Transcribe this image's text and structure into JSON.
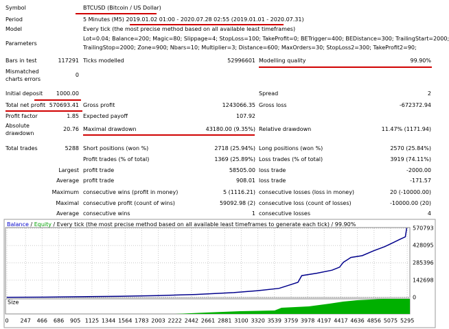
{
  "report": {
    "symbol": {
      "label": "Symbol",
      "value": "BTCUSD (Bitcoin / US Dollar)"
    },
    "period": {
      "label": "Period",
      "value": "5 Minutes (M5) 2019.01.02 01:00 - 2020.07.28 02:55 (2019.01.01 - 2020.07.31)"
    },
    "model": {
      "label": "Model",
      "value": "Every tick (the most precise method based on all available least timeframes)"
    },
    "parameters": {
      "label": "Parameters",
      "lines": [
        "Lot=0.04; Balance=200; Magic=80; Slippage=4; StopLoss=100; TakeProfit=0; BETrigger=400; BEDistance=300; TrailingStart=2000;",
        "TrailingStop=2000; Zone=900; Nbars=10; Multiplier=3; Distance=600; MaxOrders=30; StopLoss2=300; TakeProfit2=90;"
      ]
    },
    "stats": [
      {
        "c1": {
          "label": [
            "Bars in test"
          ],
          "value": "117291"
        },
        "c2": {
          "label": "Ticks modelled",
          "value": "52996601"
        },
        "c3": {
          "label": "Modelling quality",
          "value": "99.90%"
        }
      },
      {
        "c1": {
          "label": [
            "Mismatched",
            "charts errors"
          ],
          "value": "0"
        }
      },
      {
        "c1": {
          "label": [
            "Initial deposit"
          ],
          "value": "1000.00"
        },
        "c3": {
          "label": "Spread",
          "value": "2"
        }
      },
      {
        "c1": {
          "label": [
            "Total net profit"
          ],
          "value": "570693.41"
        },
        "c2": {
          "label": "Gross profit",
          "value": "1243066.35"
        },
        "c3": {
          "label": "Gross loss",
          "value": "-672372.94"
        }
      },
      {
        "c1": {
          "label": [
            "Profit factor"
          ],
          "value": "1.85"
        },
        "c2": {
          "label": "Expected payoff",
          "value": "107.92"
        }
      },
      {
        "c1": {
          "label": [
            "Absolute",
            "drawdown"
          ],
          "value": "20.76"
        },
        "c2": {
          "label": "Maximal drawdown",
          "value": "43180.00 (9.35%)"
        },
        "c3": {
          "label": "Relative drawdown",
          "value": "11.47% (1171.94)"
        }
      },
      {
        "c1": {
          "label": [
            "Total trades"
          ],
          "value": "5288"
        },
        "c2": {
          "label": "Short positions (won %)",
          "value": "2718 (25.94%)"
        },
        "c3": {
          "label": "Long positions (won %)",
          "value": "2570 (25.84%)"
        }
      },
      {
        "c2": {
          "label": "Profit trades (% of total)",
          "value": "1369 (25.89%)"
        },
        "c3": {
          "label": "Loss trades (% of total)",
          "value": "3919 (74.11%)"
        }
      },
      {
        "lead": "Largest",
        "c2": {
          "label": "profit trade",
          "value": "58505.00"
        },
        "c3": {
          "label": "loss trade",
          "value": "-2000.00"
        }
      },
      {
        "lead": "Average",
        "c2": {
          "label": "profit trade",
          "value": "908.01"
        },
        "c3": {
          "label": "loss trade",
          "value": "-171.57"
        }
      },
      {
        "lead": "Maximum",
        "c2": {
          "label": "consecutive wins (profit in money)",
          "value": "5 (1116.21)"
        },
        "c3": {
          "label": "consecutive losses (loss in money)",
          "value": "20 (-10000.00)"
        }
      },
      {
        "lead": "Maximal",
        "c2": {
          "label": "consecutive profit (count of wins)",
          "value": "59092.98 (2)"
        },
        "c3": {
          "label": "consecutive loss (count of losses)",
          "value": "-10000.00 (20)"
        }
      },
      {
        "lead": "Average",
        "c2": {
          "label": "consecutive wins",
          "value": "1"
        },
        "c3": {
          "label": "consecutive losses",
          "value": "4"
        }
      }
    ]
  },
  "graph": {
    "balance_label": "Balance",
    "separator": "/",
    "equity_label": "Equity",
    "description": "Every tick (the most precise method based on all available least timeframes to generate each tick)",
    "quality": "99.90%",
    "size_label": "Size",
    "xlim": [
      0,
      5330
    ],
    "ylim": [
      0,
      570793
    ],
    "xticks": [
      0,
      247,
      466,
      686,
      905,
      1125,
      1344,
      1564,
      1783,
      2003,
      2222,
      2442,
      2661,
      2881,
      3100,
      3320,
      3539,
      3759,
      3978,
      4197,
      4417,
      4636,
      4856,
      5075,
      5295
    ],
    "yticks": [
      0,
      142698,
      285396,
      428095,
      570793
    ],
    "balance": {
      "color": "#00008b",
      "x": [
        0,
        500,
        1000,
        1500,
        2000,
        2500,
        3000,
        3300,
        3600,
        3700,
        3850,
        3900,
        4100,
        4300,
        4400,
        4450,
        4550,
        4700,
        4850,
        5000,
        5100,
        5200,
        5270,
        5288
      ],
      "values": [
        1000,
        3000,
        6000,
        10000,
        16000,
        25000,
        40000,
        55000,
        75000,
        95000,
        125000,
        180000,
        200000,
        225000,
        250000,
        290000,
        330000,
        345000,
        385000,
        420000,
        450000,
        480000,
        500000,
        571693
      ]
    }
  }
}
